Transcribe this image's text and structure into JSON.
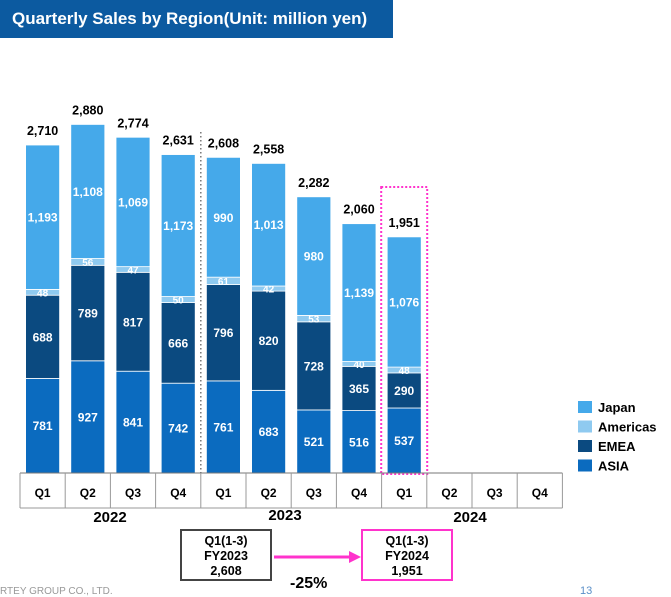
{
  "header": {
    "title": "Quarterly Sales by Region(Unit: million yen)"
  },
  "chart_data": {
    "type": "bar",
    "stacked": true,
    "title": "Quarterly Sales by Region(Unit: million yen)",
    "categories": [
      "Q1",
      "Q2",
      "Q3",
      "Q4",
      "Q1",
      "Q2",
      "Q3",
      "Q4",
      "Q1",
      "Q2",
      "Q3",
      "Q4"
    ],
    "years": [
      {
        "label": "2022"
      },
      {
        "label": "2023"
      },
      {
        "label": "2024"
      }
    ],
    "series": [
      {
        "name": "ASIA",
        "color": "#0b6bbf",
        "values": [
          781,
          927,
          841,
          742,
          761,
          683,
          521,
          516,
          537,
          null,
          null,
          null
        ]
      },
      {
        "name": "EMEA",
        "color": "#0b4a80",
        "values": [
          688,
          789,
          817,
          666,
          796,
          820,
          728,
          365,
          290,
          null,
          null,
          null
        ]
      },
      {
        "name": "Americas",
        "color": "#8fcaf0",
        "values": [
          48,
          56,
          47,
          50,
          61,
          42,
          53,
          40,
          48,
          null,
          null,
          null
        ]
      },
      {
        "name": "Japan",
        "color": "#45a9ea",
        "values": [
          1193,
          1108,
          1069,
          1173,
          990,
          1013,
          980,
          1139,
          1076,
          null,
          null,
          null
        ]
      }
    ],
    "totals": [
      "2,710",
      "2,880",
      "2,774",
      "2,631",
      "2,608",
      "2,558",
      "2,282",
      "2,060",
      "1,951",
      null,
      null,
      null
    ],
    "legend_order": [
      "Japan",
      "Americas",
      "EMEA",
      "ASIA"
    ],
    "legend_position": "right",
    "ylim": [
      0,
      3100
    ],
    "highlight_index": 8
  },
  "comparison": {
    "previous": {
      "line1": "Q1(1-3)",
      "line2": "FY2023",
      "line3": "2,608"
    },
    "current": {
      "line1": "Q1(1-3)",
      "line2": "FY2024",
      "line3": "1,951"
    },
    "change": "-25%"
  },
  "footer": {
    "text": "RTEY GROUP CO., LTD.",
    "page": "13"
  }
}
